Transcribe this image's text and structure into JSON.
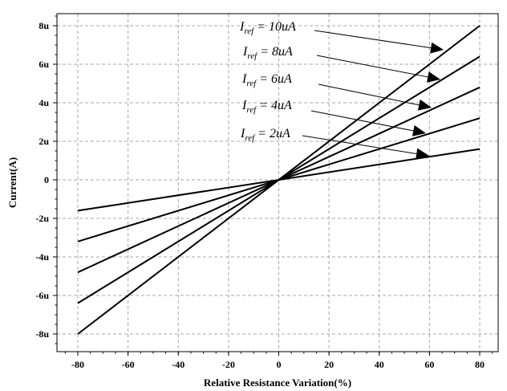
{
  "chart_data": {
    "type": "line",
    "xlabel": "Relative Resistance Variation(%)",
    "ylabel": "Current(A)",
    "xlim": [
      -86,
      88
    ],
    "ylim": [
      -8.8,
      8.8
    ],
    "x_ticks": [
      -80,
      -60,
      -40,
      -20,
      0,
      20,
      40,
      60,
      80
    ],
    "x_tick_labels": [
      "-80",
      "-60",
      "-40",
      "-20",
      "0",
      "20",
      "40",
      "60",
      "80"
    ],
    "y_ticks": [
      8,
      6,
      4,
      2,
      0,
      -2,
      -4,
      -6,
      -8
    ],
    "y_tick_labels": [
      "8u",
      "6u",
      "4u",
      "2u",
      "0",
      "-2u",
      "-4u",
      "-6u",
      "-8u"
    ],
    "grid": true,
    "series": [
      {
        "name": "Iref = 10uA",
        "x": [
          -80,
          80
        ],
        "y": [
          -8.0,
          8.0
        ]
      },
      {
        "name": "Iref = 8uA",
        "x": [
          -80,
          80
        ],
        "y": [
          -6.4,
          6.4
        ]
      },
      {
        "name": "Iref = 6uA",
        "x": [
          -80,
          80
        ],
        "y": [
          -4.8,
          4.8
        ]
      },
      {
        "name": "Iref = 4uA",
        "x": [
          -80,
          80
        ],
        "y": [
          -3.2,
          3.2
        ]
      },
      {
        "name": "Iref = 2uA",
        "x": [
          -80,
          80
        ],
        "y": [
          -1.6,
          1.6
        ]
      }
    ],
    "annotations": [
      {
        "main": "I",
        "sub": "ref",
        "rest": " = 10uA",
        "series": 0
      },
      {
        "main": "I",
        "sub": "ref",
        "rest": " = 8uA",
        "series": 1
      },
      {
        "main": "I",
        "sub": "ref",
        "rest": " = 6uA",
        "series": 2
      },
      {
        "main": "I",
        "sub": "ref",
        "rest": " = 4uA",
        "series": 3
      },
      {
        "main": "I",
        "sub": "ref",
        "rest": " = 2uA",
        "series": 4
      }
    ]
  }
}
